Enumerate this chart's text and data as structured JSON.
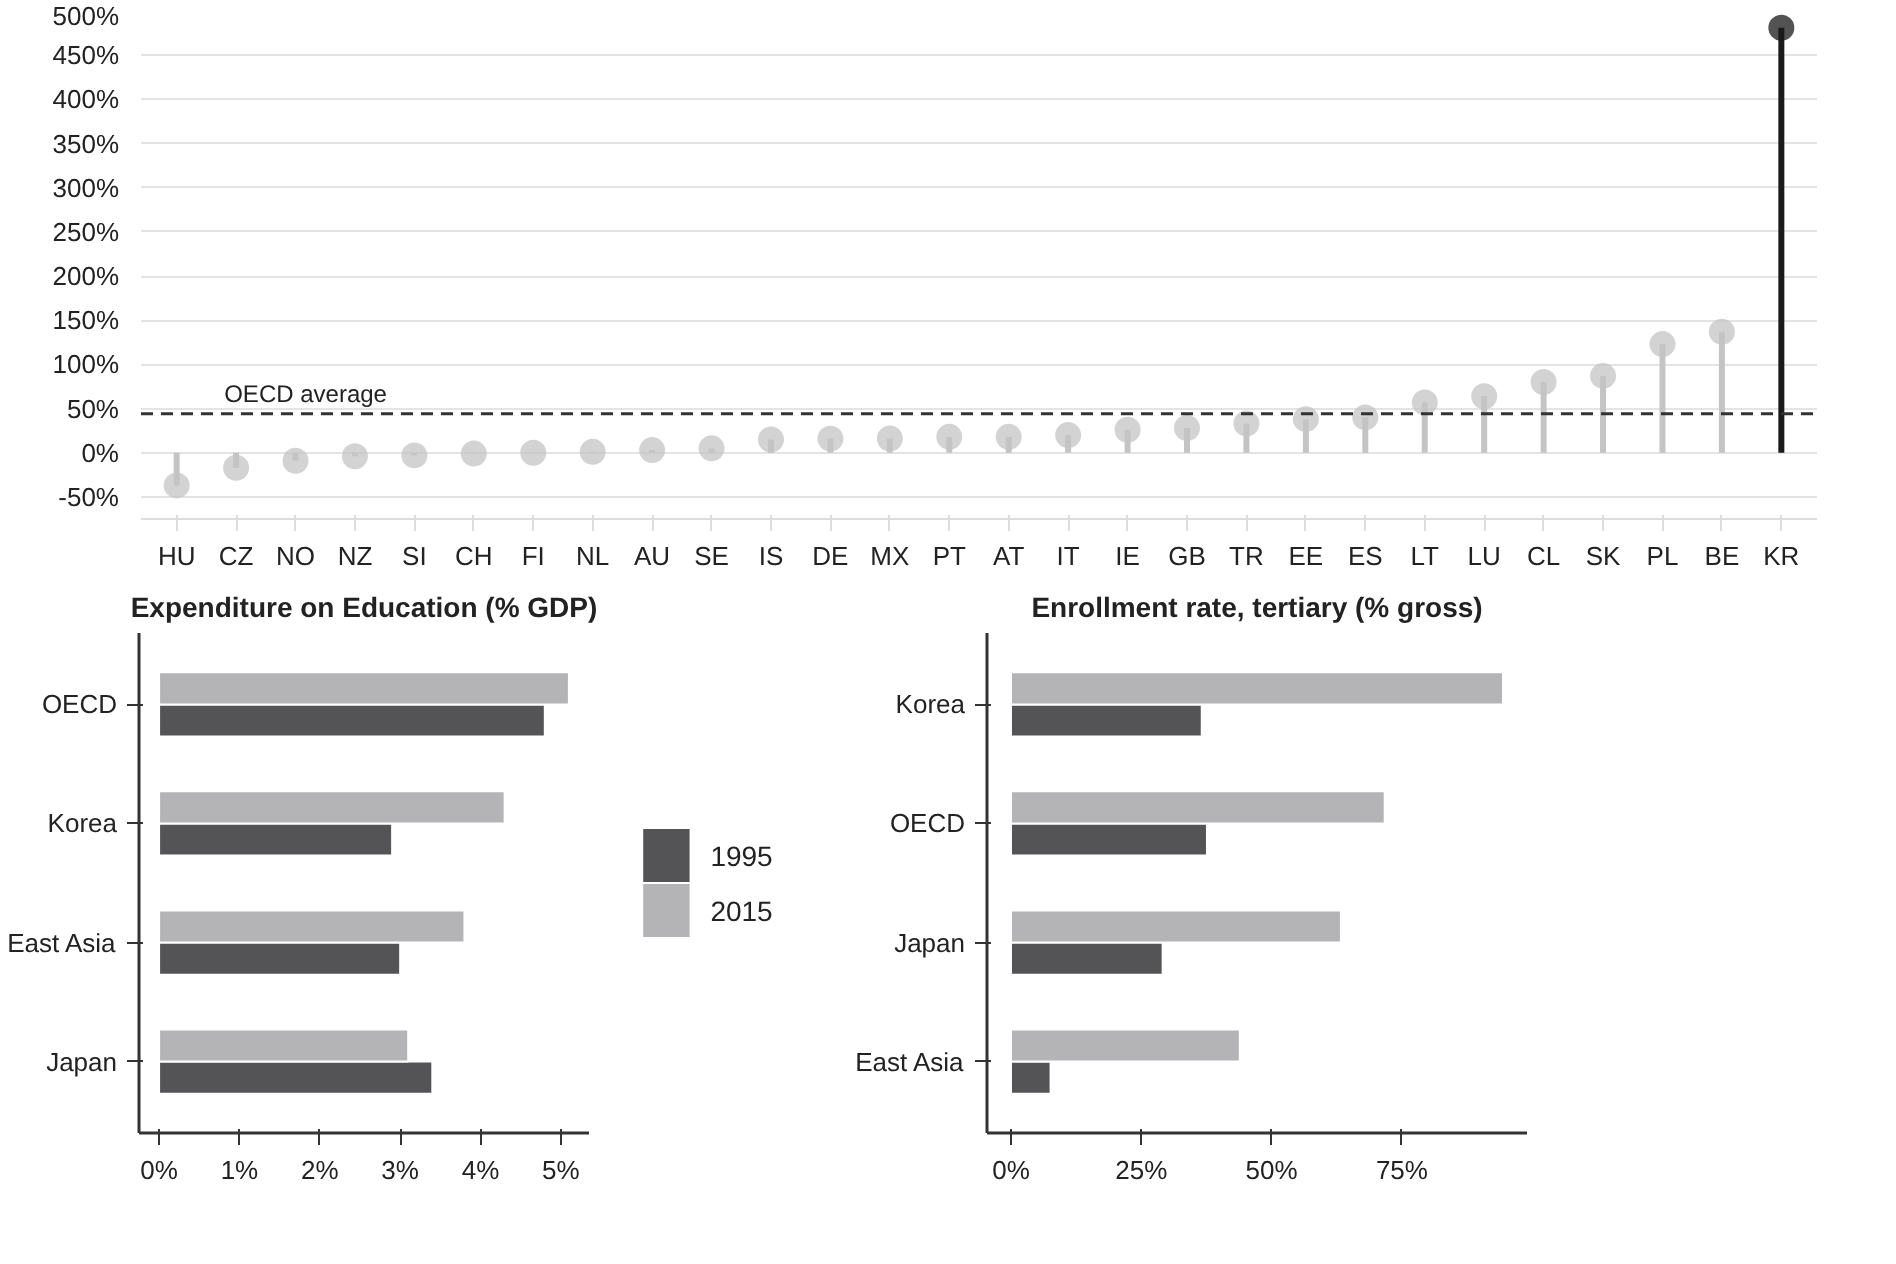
{
  "chart_data": [
    {
      "type": "lollipop",
      "categories": [
        "HU",
        "CZ",
        "NO",
        "NZ",
        "SI",
        "CH",
        "FI",
        "NL",
        "AU",
        "SE",
        "IS",
        "DE",
        "MX",
        "PT",
        "AT",
        "IT",
        "IE",
        "GB",
        "TR",
        "EE",
        "ES",
        "LT",
        "LU",
        "CL",
        "SK",
        "PL",
        "BE",
        "KR"
      ],
      "values": [
        -37,
        -17,
        -9,
        -4,
        -3,
        -1,
        0,
        1,
        3,
        5,
        15,
        16,
        16,
        18,
        18,
        20,
        26,
        28,
        33,
        38,
        40,
        57,
        64,
        80,
        87,
        123,
        137,
        481
      ],
      "colors": [
        "#c4c4c4",
        "#c4c4c4",
        "#c4c4c4",
        "#c4c4c4",
        "#c4c4c4",
        "#c4c4c4",
        "#c4c4c4",
        "#c4c4c4",
        "#c4c4c4",
        "#c4c4c4",
        "#c4c4c4",
        "#c4c4c4",
        "#c4c4c4",
        "#c4c4c4",
        "#c4c4c4",
        "#c4c4c4",
        "#c4c4c4",
        "#c4c4c4",
        "#c4c4c4",
        "#c4c4c4",
        "#c4c4c4",
        "#c4c4c4",
        "#c4c4c4",
        "#c4c4c4",
        "#c4c4c4",
        "#c4c4c4",
        "#c4c4c4",
        "#1a1a1a"
      ],
      "marker": "circle",
      "ylim": [
        -75,
        500
      ],
      "yticks": [
        {
          "value": -50,
          "label": "-50%"
        },
        {
          "value": 0,
          "label": "0%"
        },
        {
          "value": 50,
          "label": "50%"
        },
        {
          "value": 100,
          "label": "100%"
        },
        {
          "value": 150,
          "label": "150%"
        },
        {
          "value": 200,
          "label": "200%"
        },
        {
          "value": 250,
          "label": "250%"
        },
        {
          "value": 300,
          "label": "300%"
        },
        {
          "value": 350,
          "label": "350%"
        },
        {
          "value": 400,
          "label": "400%"
        },
        {
          "value": 450,
          "label": "450%"
        },
        {
          "value": 500,
          "label": "500%"
        }
      ],
      "grid": "y",
      "ref_lines": [
        {
          "axis": "y",
          "value": 44,
          "label": "OECD average",
          "line_style": "dashed",
          "color": "#333333"
        }
      ]
    },
    {
      "type": "bar",
      "orientation": "horizontal",
      "title": "Expenditure on Education (% GDP)",
      "categories": [
        "OECD",
        "Korea",
        "East Asia",
        "Japan"
      ],
      "series": [
        {
          "name": "1995",
          "color": "#545457",
          "values": [
            4.8,
            2.9,
            3.0,
            3.4
          ]
        },
        {
          "name": "2015",
          "color": "#b4b4b7",
          "values": [
            5.1,
            4.3,
            3.8,
            3.1
          ]
        }
      ],
      "xlim": [
        -0.25,
        5.35
      ],
      "xticks": [
        {
          "value": 0,
          "label": "0%"
        },
        {
          "value": 1,
          "label": "1%"
        },
        {
          "value": 2,
          "label": "2%"
        },
        {
          "value": 3,
          "label": "3%"
        },
        {
          "value": 4,
          "label": "4%"
        },
        {
          "value": 5,
          "label": "5%"
        }
      ],
      "grid": false,
      "legend": "right"
    },
    {
      "type": "bar",
      "orientation": "horizontal",
      "title": "Enrollment rate, tertiary (% gross)",
      "categories": [
        "Korea",
        "OECD",
        "Japan",
        "East Asia"
      ],
      "series": [
        {
          "color": "#545457",
          "values": [
            36.6,
            37.6,
            29.1,
            7.6
          ]
        },
        {
          "color": "#b4b4b7",
          "values": [
            94.4,
            71.7,
            63.3,
            43.9
          ]
        }
      ],
      "xlim": [
        -4.6,
        99
      ],
      "xticks": [
        {
          "value": 0,
          "label": "0%"
        },
        {
          "value": 25,
          "label": "25%"
        },
        {
          "value": 50,
          "label": "50%"
        },
        {
          "value": 75,
          "label": "75%"
        }
      ],
      "grid": false
    }
  ]
}
